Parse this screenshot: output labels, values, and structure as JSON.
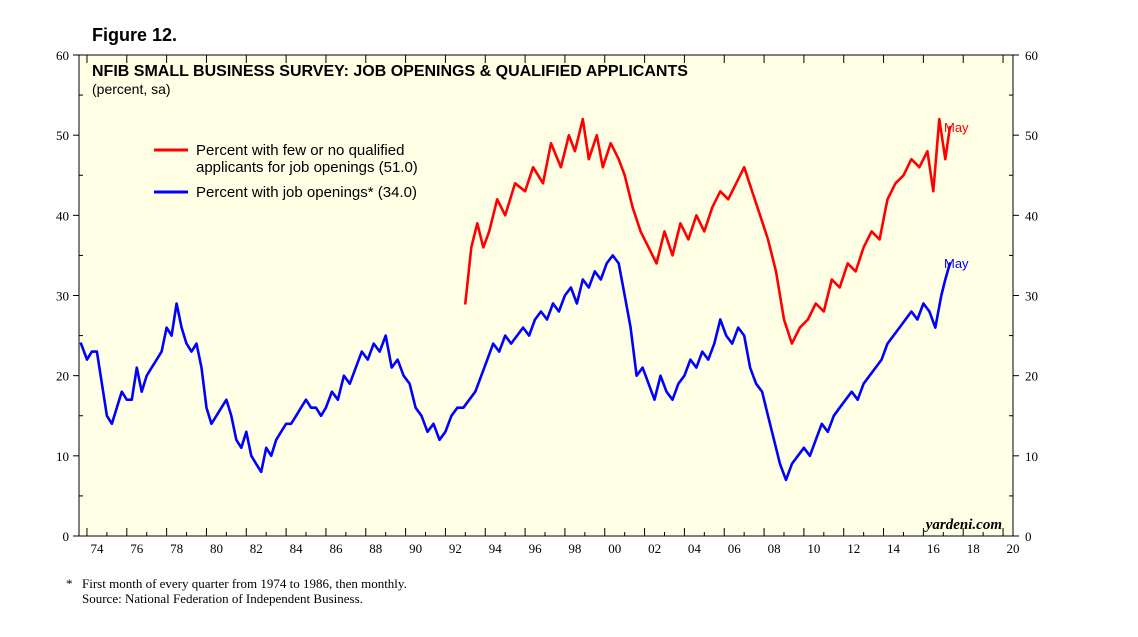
{
  "figure_label": "Figure 12.",
  "chart_data": {
    "type": "line",
    "title": "NFIB SMALL BUSINESS SURVEY: JOB OPENINGS & QUALIFIED APPLICANTS",
    "subtitle": "(percent, sa)",
    "ylim": [
      0,
      60
    ],
    "xlim": [
      1973.6,
      2020.5
    ],
    "y_ticks": [
      "0",
      "10",
      "20",
      "30",
      "40",
      "50",
      "60"
    ],
    "x_ticks": [
      "74",
      "76",
      "78",
      "80",
      "82",
      "84",
      "86",
      "88",
      "90",
      "92",
      "94",
      "96",
      "98",
      "00",
      "02",
      "04",
      "06",
      "08",
      "10",
      "12",
      "14",
      "16",
      "18",
      "20"
    ],
    "x_tick_years": [
      1974,
      1976,
      1978,
      1980,
      1982,
      1984,
      1986,
      1988,
      1990,
      1992,
      1994,
      1996,
      1998,
      2000,
      2002,
      2004,
      2006,
      2008,
      2010,
      2012,
      2014,
      2016,
      2018,
      2020
    ],
    "series": [
      {
        "name": "Percent with few or no qualified applicants for job openings (51.0)",
        "legend_line1": "Percent with few or no qualified",
        "legend_line2": "applicants for job openings (51.0)",
        "color": "#ff0000",
        "end_label": "May",
        "x": [
          1993.0,
          1993.3,
          1993.6,
          1993.9,
          1994.2,
          1994.6,
          1995.0,
          1995.5,
          1996.0,
          1996.4,
          1996.9,
          1997.3,
          1997.8,
          1998.2,
          1998.5,
          1998.9,
          1999.2,
          1999.6,
          1999.9,
          2000.3,
          2000.7,
          2001.0,
          2001.4,
          2001.8,
          2002.2,
          2002.6,
          2003.0,
          2003.4,
          2003.8,
          2004.2,
          2004.6,
          2005.0,
          2005.4,
          2005.8,
          2006.2,
          2006.6,
          2007.0,
          2007.4,
          2007.8,
          2008.2,
          2008.6,
          2009.0,
          2009.4,
          2009.8,
          2010.2,
          2010.6,
          2011.0,
          2011.4,
          2011.8,
          2012.2,
          2012.6,
          2013.0,
          2013.4,
          2013.8,
          2014.2,
          2014.6,
          2015.0,
          2015.4,
          2015.8,
          2016.2,
          2016.5,
          2016.8,
          2017.1,
          2017.33
        ],
        "values": [
          29,
          36,
          39,
          36,
          38,
          42,
          40,
          44,
          43,
          46,
          44,
          49,
          46,
          50,
          48,
          52,
          47,
          50,
          46,
          49,
          47,
          45,
          41,
          38,
          36,
          34,
          38,
          35,
          39,
          37,
          40,
          38,
          41,
          43,
          42,
          44,
          46,
          43,
          40,
          37,
          33,
          27,
          24,
          26,
          27,
          29,
          28,
          32,
          31,
          34,
          33,
          36,
          38,
          37,
          42,
          44,
          45,
          47,
          46,
          48,
          43,
          52,
          47,
          51
        ]
      },
      {
        "name": "Percent with job openings* (34.0)",
        "legend_line1": "Percent with job openings* (34.0)",
        "legend_line2": "",
        "color": "#0000ff",
        "end_label": "May",
        "x": [
          1973.7,
          1974.0,
          1974.25,
          1974.5,
          1974.75,
          1975.0,
          1975.25,
          1975.5,
          1975.75,
          1976.0,
          1976.25,
          1976.5,
          1976.75,
          1977.0,
          1977.25,
          1977.5,
          1977.75,
          1978.0,
          1978.25,
          1978.5,
          1978.75,
          1979.0,
          1979.25,
          1979.5,
          1979.75,
          1980.0,
          1980.25,
          1980.5,
          1980.75,
          1981.0,
          1981.25,
          1981.5,
          1981.75,
          1982.0,
          1982.25,
          1982.5,
          1982.75,
          1983.0,
          1983.25,
          1983.5,
          1983.75,
          1984.0,
          1984.25,
          1984.5,
          1984.75,
          1985.0,
          1985.25,
          1985.5,
          1985.75,
          1986.0,
          1986.3,
          1986.6,
          1986.9,
          1987.2,
          1987.5,
          1987.8,
          1988.1,
          1988.4,
          1988.7,
          1989.0,
          1989.3,
          1989.6,
          1989.9,
          1990.2,
          1990.5,
          1990.8,
          1991.1,
          1991.4,
          1991.7,
          1992.0,
          1992.3,
          1992.6,
          1992.9,
          1993.2,
          1993.5,
          1993.8,
          1994.1,
          1994.4,
          1994.7,
          1995.0,
          1995.3,
          1995.6,
          1995.9,
          1996.2,
          1996.5,
          1996.8,
          1997.1,
          1997.4,
          1997.7,
          1998.0,
          1998.3,
          1998.6,
          1998.9,
          1999.2,
          1999.5,
          1999.8,
          2000.1,
          2000.4,
          2000.7,
          2001.0,
          2001.3,
          2001.6,
          2001.9,
          2002.2,
          2002.5,
          2002.8,
          2003.1,
          2003.4,
          2003.7,
          2004.0,
          2004.3,
          2004.6,
          2004.9,
          2005.2,
          2005.5,
          2005.8,
          2006.1,
          2006.4,
          2006.7,
          2007.0,
          2007.3,
          2007.6,
          2007.9,
          2008.2,
          2008.5,
          2008.8,
          2009.1,
          2009.4,
          2009.7,
          2010.0,
          2010.3,
          2010.6,
          2010.9,
          2011.2,
          2011.5,
          2011.8,
          2012.1,
          2012.4,
          2012.7,
          2013.0,
          2013.3,
          2013.6,
          2013.9,
          2014.2,
          2014.5,
          2014.8,
          2015.1,
          2015.4,
          2015.7,
          2016.0,
          2016.3,
          2016.6,
          2016.9,
          2017.1,
          2017.33
        ],
        "values": [
          24,
          22,
          23,
          23,
          19,
          15,
          14,
          16,
          18,
          17,
          17,
          21,
          18,
          20,
          21,
          22,
          23,
          26,
          25,
          29,
          26,
          24,
          23,
          24,
          21,
          16,
          14,
          15,
          16,
          17,
          15,
          12,
          11,
          13,
          10,
          9,
          8,
          11,
          10,
          12,
          13,
          14,
          14,
          15,
          16,
          17,
          16,
          16,
          15,
          16,
          18,
          17,
          20,
          19,
          21,
          23,
          22,
          24,
          23,
          25,
          21,
          22,
          20,
          19,
          16,
          15,
          13,
          14,
          12,
          13,
          15,
          16,
          16,
          17,
          18,
          20,
          22,
          24,
          23,
          25,
          24,
          25,
          26,
          25,
          27,
          28,
          27,
          29,
          28,
          30,
          31,
          29,
          32,
          31,
          33,
          32,
          34,
          35,
          34,
          30,
          26,
          20,
          21,
          19,
          17,
          20,
          18,
          17,
          19,
          20,
          22,
          21,
          23,
          22,
          24,
          27,
          25,
          24,
          26,
          25,
          21,
          19,
          18,
          15,
          12,
          9,
          7,
          9,
          10,
          11,
          10,
          12,
          14,
          13,
          15,
          16,
          17,
          18,
          17,
          19,
          20,
          21,
          22,
          24,
          25,
          26,
          27,
          28,
          27,
          29,
          28,
          26,
          30,
          32,
          34
        ]
      }
    ],
    "watermark": "yardeni.com"
  },
  "footnotes": {
    "line1_mark": "*",
    "line1": "First month of every quarter from 1974 to 1986, then monthly.",
    "line2": "Source: National Federation of Independent Business."
  }
}
